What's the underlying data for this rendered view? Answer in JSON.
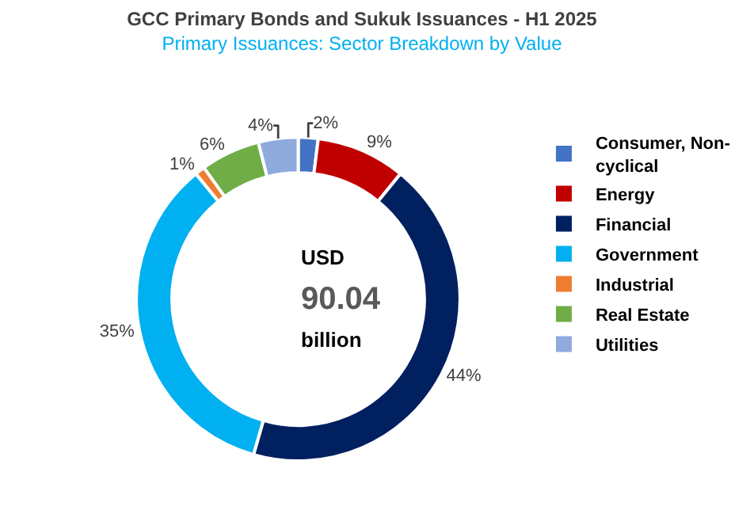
{
  "chart_data": {
    "type": "donut",
    "title": "GCC Primary Bonds and Sukuk Issuances - H1 2025",
    "subtitle": "Primary Issuances: Sector Breakdown by Value",
    "categories": [
      "Consumer, Non-cyclical",
      "Energy",
      "Financial",
      "Government",
      "Industrial",
      "Real Estate",
      "Utilities"
    ],
    "values": [
      2,
      9,
      44,
      35,
      1,
      6,
      4
    ],
    "value_labels": [
      "2%",
      "9%",
      "44%",
      "35%",
      "1%",
      "6%",
      "4%"
    ],
    "colors": [
      "#4472c4",
      "#c00000",
      "#002060",
      "#00b0f0",
      "#ed7d31",
      "#70ad47",
      "#8faadc"
    ],
    "annotations": [
      "USD",
      "90.04",
      "billion"
    ],
    "legend": "right"
  }
}
